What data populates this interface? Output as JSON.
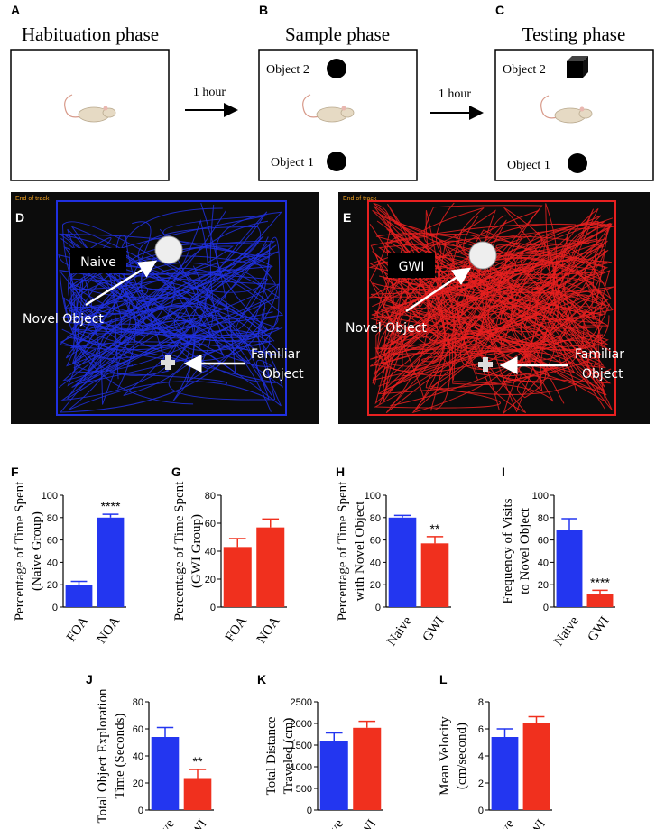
{
  "top_panels": [
    {
      "letter": "A",
      "title": "Habituation phase"
    },
    {
      "letter": "B",
      "title": "Sample phase",
      "objects": [
        "Object 2",
        "Object 1"
      ]
    },
    {
      "letter": "C",
      "title": "Testing phase",
      "objects": [
        "Object 2",
        "Object 1"
      ]
    }
  ],
  "arrows": [
    "1 hour",
    "1 hour"
  ],
  "tracking": [
    {
      "letter": "D",
      "end_label": "End of track",
      "group": "Naive",
      "novel": "Novel Object",
      "familiar": [
        "Familiar",
        "Object"
      ]
    },
    {
      "letter": "E",
      "end_label": "End of track",
      "group": "GWI",
      "novel": "Novel Object",
      "familiar": [
        "Familiar",
        "Object"
      ]
    }
  ],
  "chart_data": [
    {
      "type": "bar",
      "letter": "F",
      "ylabel": [
        "Percentage of Time Spent",
        "(Naive Group)"
      ],
      "categories": [
        "FOA",
        "NOA"
      ],
      "values": [
        20,
        80
      ],
      "errors": [
        3,
        3
      ],
      "colors": [
        "#2336f0",
        "#2336f0"
      ],
      "ylim": [
        0,
        100
      ],
      "yticks": [
        0,
        20,
        40,
        60,
        80,
        100
      ],
      "annotation": {
        "text": "****",
        "at": "NOA"
      }
    },
    {
      "type": "bar",
      "letter": "G",
      "ylabel": [
        "Percentage of Time Spent",
        "(GWI Group)"
      ],
      "categories": [
        "FOA",
        "NOA"
      ],
      "values": [
        43,
        57
      ],
      "errors": [
        6,
        6
      ],
      "colors": [
        "#f0301e",
        "#f0301e"
      ],
      "ylim": [
        0,
        80
      ],
      "yticks": [
        0,
        20,
        40,
        60,
        80
      ]
    },
    {
      "type": "bar",
      "letter": "H",
      "ylabel": [
        "Percentage of Time Spent",
        "with Novel Object"
      ],
      "categories": [
        "Naive",
        "GWI"
      ],
      "values": [
        80,
        57
      ],
      "errors": [
        2,
        6
      ],
      "colors": [
        "#2336f0",
        "#f0301e"
      ],
      "ylim": [
        0,
        100
      ],
      "yticks": [
        0,
        20,
        40,
        60,
        80,
        100
      ],
      "annotation": {
        "text": "**",
        "at": "GWI"
      }
    },
    {
      "type": "bar",
      "letter": "I",
      "ylabel": [
        "Frequency of Visits",
        "to Novel Object"
      ],
      "categories": [
        "Naive",
        "GWI"
      ],
      "values": [
        69,
        12
      ],
      "errors": [
        10,
        3
      ],
      "colors": [
        "#2336f0",
        "#f0301e"
      ],
      "ylim": [
        0,
        100
      ],
      "yticks": [
        0,
        20,
        40,
        60,
        80,
        100
      ],
      "annotation": {
        "text": "****",
        "at": "GWI"
      }
    },
    {
      "type": "bar",
      "letter": "J",
      "ylabel": [
        "Total Object Exploration",
        "Time (Seconds)"
      ],
      "categories": [
        "Naive",
        "GWI"
      ],
      "values": [
        54,
        23
      ],
      "errors": [
        7,
        7
      ],
      "colors": [
        "#2336f0",
        "#f0301e"
      ],
      "ylim": [
        0,
        80
      ],
      "yticks": [
        0,
        20,
        40,
        60,
        80
      ],
      "annotation": {
        "text": "**",
        "at": "GWI"
      }
    },
    {
      "type": "bar",
      "letter": "K",
      "ylabel": [
        "Total Distance",
        "Traveled (cm)"
      ],
      "categories": [
        "Naive",
        "GWI"
      ],
      "values": [
        1600,
        1900
      ],
      "errors": [
        180,
        150
      ],
      "colors": [
        "#2336f0",
        "#f0301e"
      ],
      "ylim": [
        0,
        2500
      ],
      "yticks": [
        0,
        500,
        1000,
        1500,
        2000,
        2500
      ]
    },
    {
      "type": "bar",
      "letter": "L",
      "ylabel": [
        "Mean Velocity",
        "(cm/second)"
      ],
      "categories": [
        "Naive",
        "GWI"
      ],
      "values": [
        5.4,
        6.4
      ],
      "errors": [
        0.6,
        0.5
      ],
      "colors": [
        "#2336f0",
        "#f0301e"
      ],
      "ylim": [
        0,
        8
      ],
      "yticks": [
        0,
        2,
        4,
        6,
        8
      ]
    }
  ]
}
